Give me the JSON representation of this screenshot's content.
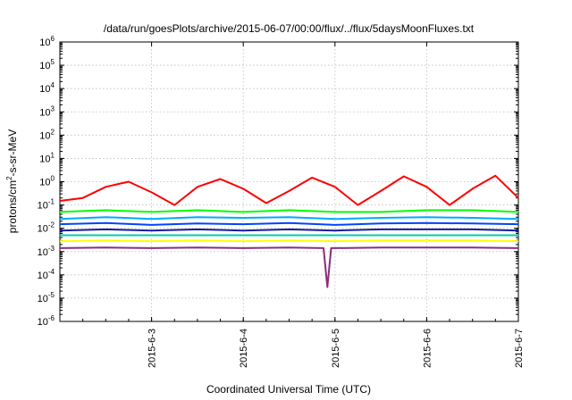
{
  "chart_data": {
    "type": "line",
    "title": "/data/run/goesPlots/archive/2015-06-07/00:00/flux/../flux/5daysMoonFluxes.txt",
    "xlabel": "Coordinated Universal Time (UTC)",
    "ylabel_base": "protons/cm",
    "ylabel_sup": "2",
    "ylabel_rest": "-s-sr-MeV",
    "yscale": "log",
    "ylim": [
      1e-06,
      1000000.0
    ],
    "y_ticks": [
      {
        "base": "10",
        "exp": "-6",
        "value": -6
      },
      {
        "base": "10",
        "exp": "-5",
        "value": -5
      },
      {
        "base": "10",
        "exp": "-4",
        "value": -4
      },
      {
        "base": "10",
        "exp": "-3",
        "value": -3
      },
      {
        "base": "10",
        "exp": "-2",
        "value": -2
      },
      {
        "base": "10",
        "exp": "-1",
        "value": -1
      },
      {
        "base": "10",
        "exp": "0",
        "value": 0
      },
      {
        "base": "10",
        "exp": "1",
        "value": 1
      },
      {
        "base": "10",
        "exp": "2",
        "value": 2
      },
      {
        "base": "10",
        "exp": "3",
        "value": 3
      },
      {
        "base": "10",
        "exp": "4",
        "value": 4
      },
      {
        "base": "10",
        "exp": "5",
        "value": 5
      },
      {
        "base": "10",
        "exp": "6",
        "value": 6
      }
    ],
    "xlim": [
      "2015-06-02",
      "2015-06-07"
    ],
    "x_ticks": [
      "2015-6-3",
      "2015-6-4",
      "2015-6-5",
      "2015-6-6",
      "2015-6-7"
    ],
    "grid": true,
    "legend": "none",
    "series": [
      {
        "color": "#ff0000",
        "x": [
          "2015-06-02",
          "2015-06-02T06:00",
          "2015-06-02T12:00",
          "2015-06-02T18:00",
          "2015-06-03",
          "2015-06-03T06:00",
          "2015-06-03T12:00",
          "2015-06-03T18:00",
          "2015-06-04",
          "2015-06-04T06:00",
          "2015-06-04T12:00",
          "2015-06-04T18:00",
          "2015-06-05",
          "2015-06-05T06:00",
          "2015-06-05T12:00",
          "2015-06-05T18:00",
          "2015-06-06",
          "2015-06-06T06:00",
          "2015-06-06T12:00",
          "2015-06-06T18:00",
          "2015-06-07"
        ],
        "values": [
          0.15,
          0.2,
          0.6,
          1.0,
          0.35,
          0.1,
          0.6,
          1.3,
          0.5,
          0.12,
          0.4,
          1.5,
          0.6,
          0.1,
          0.4,
          1.7,
          0.6,
          0.1,
          0.5,
          1.8,
          0.2
        ]
      },
      {
        "color": "#00ff00",
        "x": [
          "2015-06-02",
          "2015-06-02T12:00",
          "2015-06-03",
          "2015-06-03T12:00",
          "2015-06-04",
          "2015-06-04T12:00",
          "2015-06-05",
          "2015-06-05T12:00",
          "2015-06-06",
          "2015-06-06T12:00",
          "2015-06-07"
        ],
        "values": [
          0.05,
          0.06,
          0.05,
          0.06,
          0.05,
          0.06,
          0.05,
          0.05,
          0.06,
          0.06,
          0.05
        ]
      },
      {
        "color": "#00aaff",
        "x": [
          "2015-06-02",
          "2015-06-02T12:00",
          "2015-06-03",
          "2015-06-03T12:00",
          "2015-06-04",
          "2015-06-04T12:00",
          "2015-06-05",
          "2015-06-05T12:00",
          "2015-06-06",
          "2015-06-06T12:00",
          "2015-06-07"
        ],
        "values": [
          0.025,
          0.03,
          0.025,
          0.03,
          0.028,
          0.03,
          0.025,
          0.028,
          0.03,
          0.028,
          0.025
        ]
      },
      {
        "color": "#0044ff",
        "x": [
          "2015-06-02",
          "2015-06-02T12:00",
          "2015-06-03",
          "2015-06-03T12:00",
          "2015-06-04",
          "2015-06-04T12:00",
          "2015-06-05",
          "2015-06-05T12:00",
          "2015-06-06",
          "2015-06-06T12:00",
          "2015-06-07"
        ],
        "values": [
          0.015,
          0.017,
          0.014,
          0.016,
          0.015,
          0.017,
          0.014,
          0.016,
          0.017,
          0.016,
          0.015
        ]
      },
      {
        "color": "#1a1aa0",
        "x": [
          "2015-06-02",
          "2015-06-02T12:00",
          "2015-06-03",
          "2015-06-03T12:00",
          "2015-06-04",
          "2015-06-04T12:00",
          "2015-06-05",
          "2015-06-05T12:00",
          "2015-06-06",
          "2015-06-06T12:00",
          "2015-06-07"
        ],
        "values": [
          0.008,
          0.009,
          0.008,
          0.009,
          0.008,
          0.009,
          0.008,
          0.009,
          0.009,
          0.009,
          0.008
        ]
      },
      {
        "color": "#00ccaa",
        "x": [
          "2015-06-02",
          "2015-06-02T12:00",
          "2015-06-03",
          "2015-06-03T12:00",
          "2015-06-04",
          "2015-06-04T12:00",
          "2015-06-05",
          "2015-06-05T12:00",
          "2015-06-06",
          "2015-06-06T12:00",
          "2015-06-07"
        ],
        "values": [
          0.005,
          0.005,
          0.005,
          0.005,
          0.005,
          0.005,
          0.005,
          0.005,
          0.005,
          0.005,
          0.005
        ]
      },
      {
        "color": "#ffff00",
        "x": [
          "2015-06-02",
          "2015-06-02T12:00",
          "2015-06-03",
          "2015-06-03T12:00",
          "2015-06-04",
          "2015-06-04T12:00",
          "2015-06-05",
          "2015-06-05T12:00",
          "2015-06-06",
          "2015-06-06T12:00",
          "2015-06-07"
        ],
        "values": [
          0.0028,
          0.003,
          0.0028,
          0.003,
          0.0028,
          0.003,
          0.0028,
          0.003,
          0.003,
          0.003,
          0.0028
        ]
      },
      {
        "color": "#8b2e7a",
        "x": [
          "2015-06-02",
          "2015-06-02T12:00",
          "2015-06-03",
          "2015-06-03T12:00",
          "2015-06-04",
          "2015-06-04T12:00",
          "2015-06-04T21:00",
          "2015-06-04T22:00",
          "2015-06-04T23:00",
          "2015-06-05",
          "2015-06-05T12:00",
          "2015-06-06",
          "2015-06-06T12:00",
          "2015-06-07"
        ],
        "values": [
          0.0014,
          0.0015,
          0.0014,
          0.0015,
          0.0014,
          0.0015,
          0.0014,
          3e-05,
          0.0014,
          0.0014,
          0.0015,
          0.0015,
          0.0015,
          0.0014
        ]
      }
    ]
  }
}
